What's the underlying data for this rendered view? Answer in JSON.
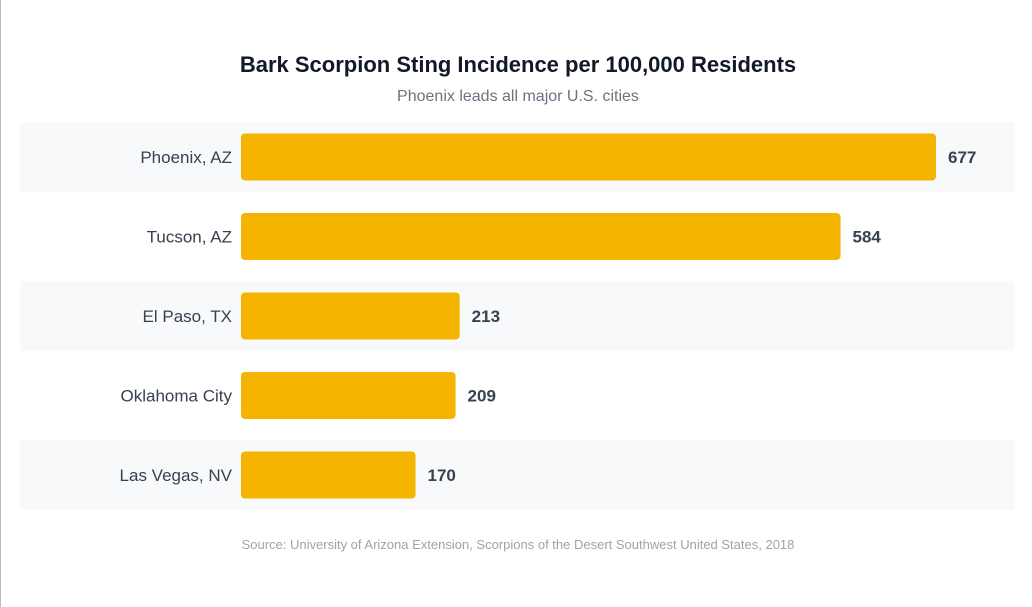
{
  "chart_data": {
    "type": "bar",
    "orientation": "horizontal",
    "title": "Bark Scorpion Sting Incidence per 100,000 Residents",
    "subtitle": "Phoenix leads all major U.S. cities",
    "source": "Source: University of Arizona Extension, Scorpions of the Desert Southwest United States, 2018",
    "categories": [
      "Phoenix, AZ",
      "Tucson, AZ",
      "El Paso, TX",
      "Oklahoma City",
      "Las Vegas, NV"
    ],
    "values": [
      677,
      584,
      213,
      209,
      170
    ],
    "xlim": [
      0,
      677
    ],
    "grid": false,
    "legend": "none",
    "bar_color": "#f4b400",
    "band_color": "#f8f9fb",
    "label_color": "#374151"
  }
}
